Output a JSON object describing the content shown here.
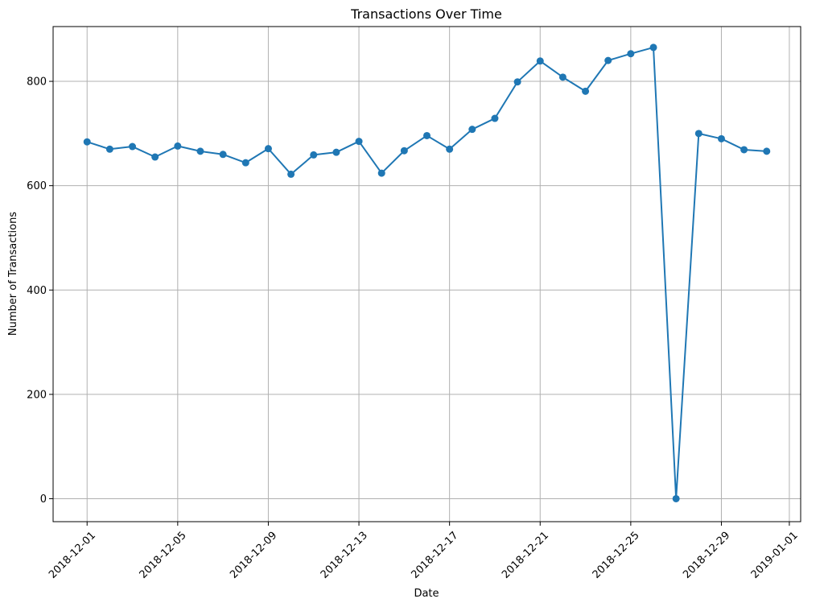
{
  "chart_data": {
    "type": "line",
    "title": "Transactions Over Time",
    "xlabel": "Date",
    "ylabel": "Number of Transactions",
    "x_ticks": [
      "2018-12-01",
      "2018-12-05",
      "2018-12-09",
      "2018-12-13",
      "2018-12-17",
      "2018-12-21",
      "2018-12-25",
      "2018-12-29",
      "2019-01-01"
    ],
    "y_ticks": [
      0,
      200,
      400,
      600,
      800
    ],
    "xlim": [
      "2018-11-29.5",
      "2019-01-01.5"
    ],
    "ylim": [
      -44,
      905
    ],
    "grid": true,
    "legend": "none",
    "series": [
      {
        "color": "#1f77b4",
        "marker": "circle",
        "x": [
          "2018-12-01",
          "2018-12-02",
          "2018-12-03",
          "2018-12-04",
          "2018-12-05",
          "2018-12-06",
          "2018-12-07",
          "2018-12-08",
          "2018-12-09",
          "2018-12-10",
          "2018-12-11",
          "2018-12-12",
          "2018-12-13",
          "2018-12-14",
          "2018-12-15",
          "2018-12-16",
          "2018-12-17",
          "2018-12-18",
          "2018-12-19",
          "2018-12-20",
          "2018-12-21",
          "2018-12-22",
          "2018-12-23",
          "2018-12-24",
          "2018-12-25",
          "2018-12-26",
          "2018-12-27",
          "2018-12-28",
          "2018-12-29",
          "2018-12-30",
          "2018-12-31"
        ],
        "values": [
          684,
          670,
          675,
          655,
          676,
          666,
          660,
          644,
          671,
          622,
          659,
          664,
          685,
          624,
          667,
          696,
          670,
          708,
          729,
          799,
          839,
          808,
          781,
          840,
          853,
          865,
          0,
          700,
          690,
          669,
          666
        ]
      }
    ]
  }
}
